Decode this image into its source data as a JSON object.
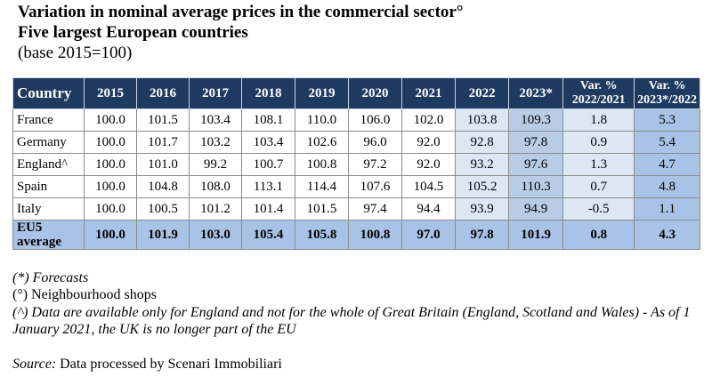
{
  "title_line1": "Variation in nominal average prices in the commercial sector°",
  "title_line2": "Five largest European countries",
  "subtitle": "(base 2015=100)",
  "table": {
    "headers": {
      "country": "Country",
      "years": [
        "2015",
        "2016",
        "2017",
        "2018",
        "2019",
        "2020",
        "2021",
        "2022",
        "2023*"
      ],
      "var1": [
        "Var. %",
        "2022/2021"
      ],
      "var2": [
        "Var. %",
        "2023*/2022"
      ]
    },
    "rows": [
      {
        "country": "France",
        "values": [
          "100.0",
          "101.5",
          "103.4",
          "108.1",
          "110.0",
          "106.0",
          "102.0",
          "103.8",
          "109.3"
        ],
        "var1": "1.8",
        "var2": "5.3"
      },
      {
        "country": "Germany",
        "values": [
          "100.0",
          "101.7",
          "103.2",
          "103.4",
          "102.6",
          "96.0",
          "92.0",
          "92.8",
          "97.8"
        ],
        "var1": "0.9",
        "var2": "5.4"
      },
      {
        "country": "England^",
        "values": [
          "100.0",
          "101.0",
          "99.2",
          "100.7",
          "100.8",
          "97.2",
          "92.0",
          "93.2",
          "97.6"
        ],
        "var1": "1.3",
        "var2": "4.7"
      },
      {
        "country": "Spain",
        "values": [
          "100.0",
          "104.8",
          "108.0",
          "113.1",
          "114.4",
          "107.6",
          "104.5",
          "105.2",
          "110.3"
        ],
        "var1": "0.7",
        "var2": "4.8"
      },
      {
        "country": "Italy",
        "values": [
          "100.0",
          "100.5",
          "101.2",
          "101.4",
          "101.5",
          "97.4",
          "94.4",
          "93.9",
          "94.9"
        ],
        "var1": "-0.5",
        "var2": "1.1"
      }
    ],
    "total": {
      "label_line1": "EU5",
      "label_line2": "average",
      "values": [
        "100.0",
        "101.9",
        "103.0",
        "105.4",
        "105.8",
        "100.8",
        "97.0",
        "97.8",
        "101.9"
      ],
      "var1": "0.8",
      "var2": "4.3"
    }
  },
  "notes": {
    "forecasts": "(*) Forecasts",
    "shops": "(°) Neighbourhood shops",
    "england": "(^) Data are available only for England and not for the whole of Great Britain (England, Scotland and Wales) - As of 1 January 2021, the UK is no longer part of the EU"
  },
  "source": {
    "label": "Source:",
    "text": " Data processed by Scenari Immobiliari"
  },
  "colors": {
    "header_bg": "#1f3a60",
    "col_2022_bg": "#dde6f3",
    "col_2023_bg": "#b8cce6",
    "total_bg": "#a9c3e6"
  }
}
